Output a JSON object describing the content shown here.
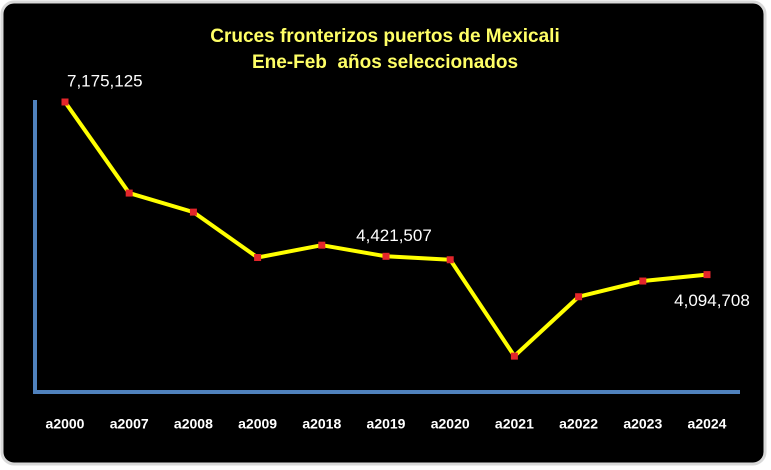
{
  "chart_data": {
    "type": "line",
    "title": "Cruces fronterizos puertos de Mexicali",
    "subtitle": "Ene-Feb  años seleccionados",
    "categories": [
      "a2000",
      "a2007",
      "a2008",
      "a2009",
      "a2018",
      "a2019",
      "a2020",
      "a2021",
      "a2022",
      "a2023",
      "a2024"
    ],
    "values": [
      7175125,
      5550000,
      5210000,
      4400000,
      4620000,
      4421507,
      4360000,
      2640000,
      3700000,
      3980000,
      4094708
    ],
    "value_labels": [
      "7,175,125",
      null,
      null,
      null,
      null,
      "4,421,507",
      null,
      null,
      null,
      null,
      "4,094,708"
    ],
    "color": "#ffff00",
    "marker_color": "#e3262b",
    "axis_color": "#4f81bd",
    "ylim": [
      2000000,
      7300000
    ]
  }
}
